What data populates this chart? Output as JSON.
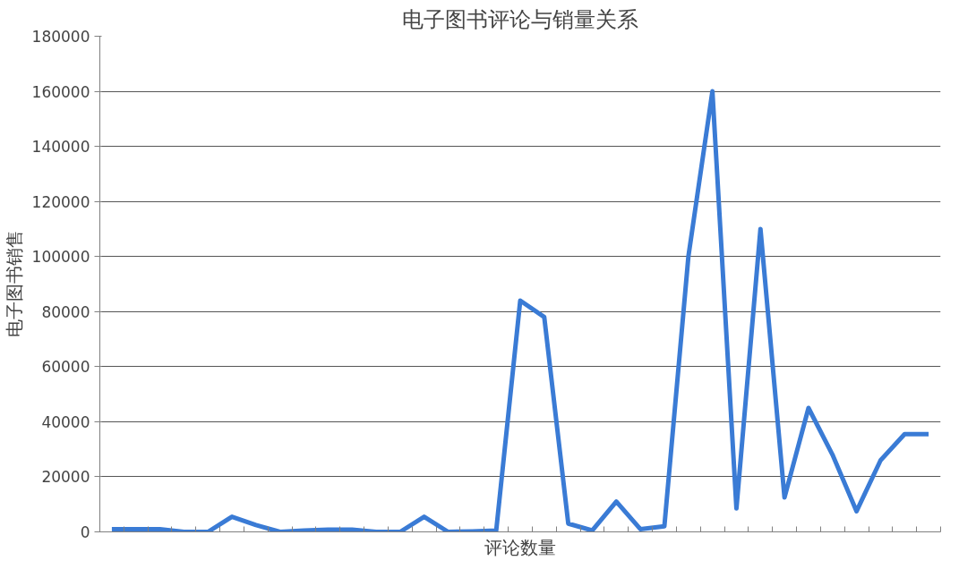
{
  "chart_data": {
    "type": "line",
    "title": "电子图书评论与销量关系",
    "xlabel": "评论数量",
    "ylabel": "电子图书销售",
    "categories": [
      null,
      null,
      null,
      null,
      null,
      null,
      null,
      null,
      null,
      null,
      null,
      null,
      null,
      null,
      null,
      null,
      null,
      null,
      null,
      null,
      null,
      null,
      null,
      null,
      null,
      null,
      null,
      null,
      null,
      null,
      null,
      null,
      null,
      null,
      null
    ],
    "series": [
      {
        "color": "#3a7bd5",
        "values": [
          1000,
          1000,
          1000,
          0,
          0,
          5500,
          2500,
          0,
          500,
          800,
          800,
          0,
          0,
          5500,
          0,
          200,
          500,
          84000,
          78000,
          3000,
          500,
          11000,
          1000,
          2000,
          100000,
          160000,
          8500,
          110000,
          12500,
          45000,
          28000,
          7500,
          26000,
          35500,
          35500
        ]
      }
    ],
    "ylim": [
      0,
      180000
    ],
    "yticks": [
      0,
      20000,
      40000,
      60000,
      80000,
      100000,
      120000,
      140000,
      160000,
      180000
    ],
    "grid": "y",
    "marker": "none",
    "line_style": "solid",
    "tick_labels": "y"
  }
}
